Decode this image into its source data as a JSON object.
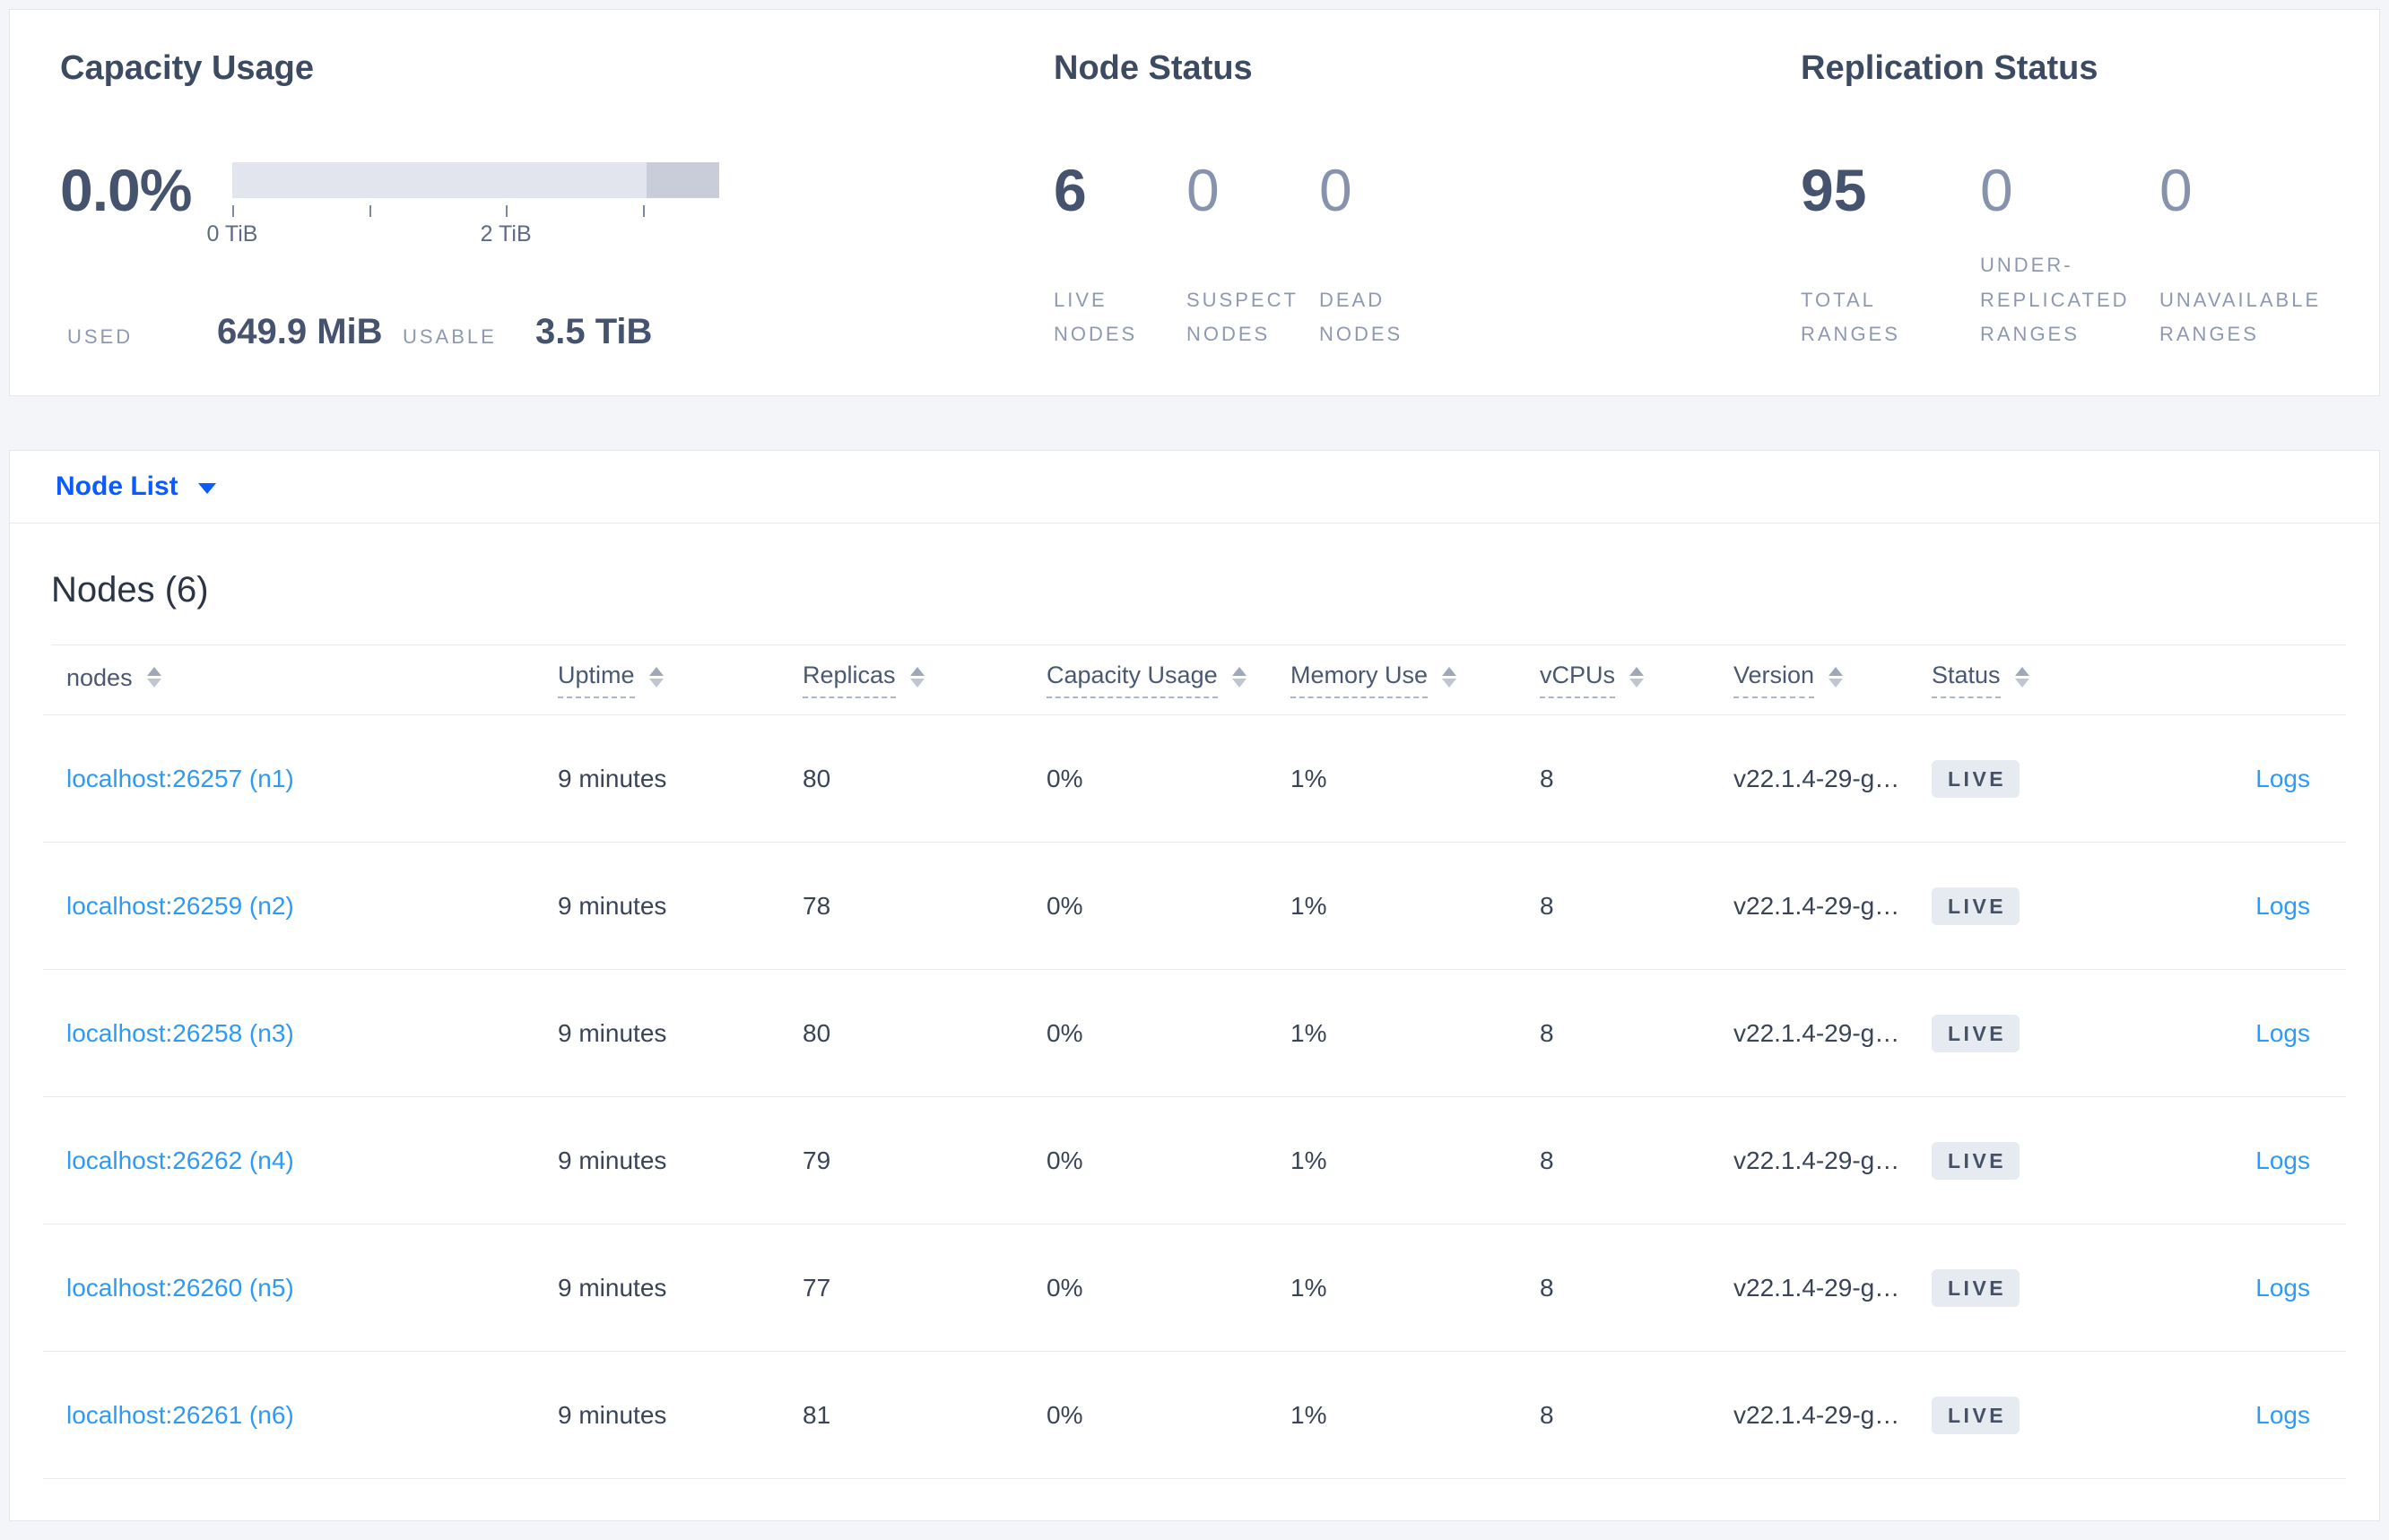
{
  "summary": {
    "capacity": {
      "title": "Capacity Usage",
      "percent": "0.0%",
      "bar": {
        "dark_segment_start_pct": 85,
        "tick_positions_pct": [
          0,
          28.1,
          56.2,
          84.3
        ]
      },
      "tick_labels": [
        {
          "text": "0 TiB",
          "pos_pct": 0
        },
        {
          "text": "2 TiB",
          "pos_pct": 56.2
        }
      ],
      "used_label": "USED",
      "used_value": "649.9 MiB",
      "usable_label": "USABLE",
      "usable_value": "3.5 TiB"
    },
    "node_status": {
      "title": "Node Status",
      "stats": [
        {
          "value": "6",
          "label": "LIVE NODES",
          "emphasis": true
        },
        {
          "value": "0",
          "label": "SUSPECT NODES",
          "emphasis": false
        },
        {
          "value": "0",
          "label": "DEAD NODES",
          "emphasis": false
        }
      ]
    },
    "replication": {
      "title": "Replication Status",
      "stats": [
        {
          "value": "95",
          "label": "TOTAL RANGES",
          "emphasis": true
        },
        {
          "value": "0",
          "label": "UNDER-REPLICATED RANGES",
          "emphasis": false
        },
        {
          "value": "0",
          "label": "UNAVAILABLE RANGES",
          "emphasis": false
        }
      ]
    }
  },
  "view_selector": {
    "label": "Node List"
  },
  "nodes_table": {
    "title": "Nodes (6)",
    "columns": [
      {
        "key": "node",
        "label": "nodes",
        "underline": false,
        "sort_icon": true
      },
      {
        "key": "uptime",
        "label": "Uptime",
        "underline": true,
        "sort_icon": true
      },
      {
        "key": "replicas",
        "label": "Replicas",
        "underline": true,
        "sort_icon": true
      },
      {
        "key": "capacity",
        "label": "Capacity Usage",
        "underline": true,
        "sort_icon": true
      },
      {
        "key": "memory",
        "label": "Memory Use",
        "underline": true,
        "sort_icon": true
      },
      {
        "key": "vcpus",
        "label": "vCPUs",
        "underline": true,
        "sort_icon": true
      },
      {
        "key": "version",
        "label": "Version",
        "underline": true,
        "sort_icon": true
      },
      {
        "key": "status",
        "label": "Status",
        "underline": true,
        "sort_icon": true
      },
      {
        "key": "logs",
        "label": "",
        "underline": false,
        "sort_icon": false
      }
    ],
    "rows": [
      {
        "node": "localhost:26257 (n1)",
        "uptime": "9 minutes",
        "replicas": "80",
        "capacity": "0%",
        "memory": "1%",
        "vcpus": "8",
        "version": "v22.1.4-29-g…",
        "status": "LIVE",
        "logs": "Logs"
      },
      {
        "node": "localhost:26259 (n2)",
        "uptime": "9 minutes",
        "replicas": "78",
        "capacity": "0%",
        "memory": "1%",
        "vcpus": "8",
        "version": "v22.1.4-29-g…",
        "status": "LIVE",
        "logs": "Logs"
      },
      {
        "node": "localhost:26258 (n3)",
        "uptime": "9 minutes",
        "replicas": "80",
        "capacity": "0%",
        "memory": "1%",
        "vcpus": "8",
        "version": "v22.1.4-29-g…",
        "status": "LIVE",
        "logs": "Logs"
      },
      {
        "node": "localhost:26262 (n4)",
        "uptime": "9 minutes",
        "replicas": "79",
        "capacity": "0%",
        "memory": "1%",
        "vcpus": "8",
        "version": "v22.1.4-29-g…",
        "status": "LIVE",
        "logs": "Logs"
      },
      {
        "node": "localhost:26260 (n5)",
        "uptime": "9 minutes",
        "replicas": "77",
        "capacity": "0%",
        "memory": "1%",
        "vcpus": "8",
        "version": "v22.1.4-29-g…",
        "status": "LIVE",
        "logs": "Logs"
      },
      {
        "node": "localhost:26261 (n6)",
        "uptime": "9 minutes",
        "replicas": "81",
        "capacity": "0%",
        "memory": "1%",
        "vcpus": "8",
        "version": "v22.1.4-29-g…",
        "status": "LIVE",
        "logs": "Logs"
      }
    ]
  },
  "colors": {
    "accent_blue": "#0b5cff",
    "link_blue": "#2f9af3",
    "dark_text": "#46536e",
    "muted_stat": "#8792ad",
    "label_gray": "#8e99b1",
    "badge_bg": "#e6ebf2"
  }
}
